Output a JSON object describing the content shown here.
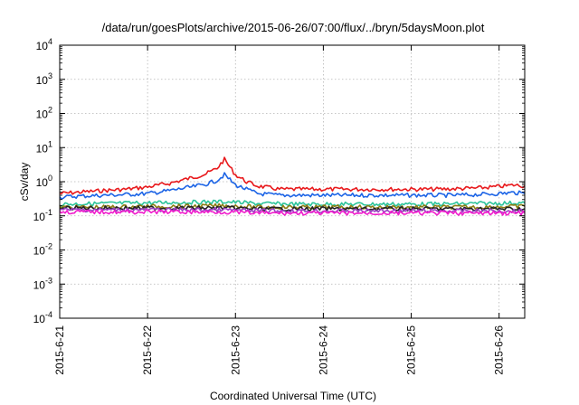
{
  "chart_data": {
    "type": "line",
    "title": "/data/run/goesPlots/archive/2015-06-26/07:00/flux/../bryn/5daysMoon.plot",
    "xlabel": "Coordinated Universal Time (UTC)",
    "ylabel": "cSv/day",
    "yscale": "log",
    "ylim": [
      0.0001,
      10000
    ],
    "y_ticks": [
      {
        "base": "10",
        "exp": "-4"
      },
      {
        "base": "10",
        "exp": "-3"
      },
      {
        "base": "10",
        "exp": "-2"
      },
      {
        "base": "10",
        "exp": "-1"
      },
      {
        "base": "10",
        "exp": "0"
      },
      {
        "base": "10",
        "exp": "1"
      },
      {
        "base": "10",
        "exp": "2"
      },
      {
        "base": "10",
        "exp": "3"
      },
      {
        "base": "10",
        "exp": "4"
      }
    ],
    "x_ticks": [
      "2015-6-21",
      "2015-6-22",
      "2015-6-23",
      "2015-6-24",
      "2015-6-25",
      "2015-6-26"
    ],
    "xlim": [
      "2015-06-21T00:00",
      "2015-06-26T07:00"
    ],
    "grid": true,
    "series": [
      {
        "color": "#e8191c",
        "x": [
          "2015-06-21T00:00",
          "2015-06-21T06:00",
          "2015-06-21T12:00",
          "2015-06-21T18:00",
          "2015-06-22T00:00",
          "2015-06-22T06:00",
          "2015-06-22T12:00",
          "2015-06-22T16:00",
          "2015-06-22T19:00",
          "2015-06-22T21:00",
          "2015-06-23T00:00",
          "2015-06-23T03:00",
          "2015-06-23T06:00",
          "2015-06-23T12:00",
          "2015-06-23T18:00",
          "2015-06-24T00:00",
          "2015-06-24T06:00",
          "2015-06-24T12:00",
          "2015-06-24T18:00",
          "2015-06-25T00:00",
          "2015-06-25T06:00",
          "2015-06-25T12:00",
          "2015-06-25T18:00",
          "2015-06-26T00:00",
          "2015-06-26T04:00",
          "2015-06-26T07:00"
        ],
        "y": [
          0.45,
          0.5,
          0.55,
          0.6,
          0.7,
          0.9,
          1.3,
          1.7,
          2.5,
          4.5,
          1.6,
          1.0,
          0.75,
          0.6,
          0.6,
          0.6,
          0.6,
          0.6,
          0.6,
          0.6,
          0.6,
          0.62,
          0.65,
          0.72,
          0.8,
          0.75
        ]
      },
      {
        "color": "#1c64e6",
        "x": [
          "2015-06-21T00:00",
          "2015-06-21T06:00",
          "2015-06-21T12:00",
          "2015-06-21T18:00",
          "2015-06-22T00:00",
          "2015-06-22T06:00",
          "2015-06-22T12:00",
          "2015-06-22T16:00",
          "2015-06-22T19:00",
          "2015-06-22T21:00",
          "2015-06-23T00:00",
          "2015-06-23T03:00",
          "2015-06-23T06:00",
          "2015-06-23T12:00",
          "2015-06-23T18:00",
          "2015-06-24T00:00",
          "2015-06-24T06:00",
          "2015-06-24T12:00",
          "2015-06-24T18:00",
          "2015-06-25T00:00",
          "2015-06-25T06:00",
          "2015-06-25T12:00",
          "2015-06-25T18:00",
          "2015-06-26T00:00",
          "2015-06-26T04:00",
          "2015-06-26T07:00"
        ],
        "y": [
          0.35,
          0.38,
          0.4,
          0.42,
          0.45,
          0.55,
          0.7,
          0.85,
          1.1,
          1.6,
          0.8,
          0.6,
          0.45,
          0.4,
          0.4,
          0.4,
          0.4,
          0.4,
          0.4,
          0.4,
          0.4,
          0.4,
          0.42,
          0.45,
          0.48,
          0.45
        ]
      },
      {
        "color": "#2cc49a",
        "x": [
          "2015-06-21T00:00",
          "2015-06-21T12:00",
          "2015-06-22T00:00",
          "2015-06-22T12:00",
          "2015-06-22T21:00",
          "2015-06-23T06:00",
          "2015-06-23T18:00",
          "2015-06-24T06:00",
          "2015-06-24T18:00",
          "2015-06-25T06:00",
          "2015-06-25T18:00",
          "2015-06-26T07:00"
        ],
        "y": [
          0.22,
          0.23,
          0.24,
          0.25,
          0.26,
          0.23,
          0.22,
          0.22,
          0.22,
          0.22,
          0.23,
          0.24
        ]
      },
      {
        "color": "#8a7c12",
        "x": [
          "2015-06-21T00:00",
          "2015-06-21T12:00",
          "2015-06-22T00:00",
          "2015-06-22T12:00",
          "2015-06-22T21:00",
          "2015-06-23T06:00",
          "2015-06-23T18:00",
          "2015-06-24T06:00",
          "2015-06-24T18:00",
          "2015-06-25T06:00",
          "2015-06-25T18:00",
          "2015-06-26T07:00"
        ],
        "y": [
          0.18,
          0.18,
          0.19,
          0.19,
          0.2,
          0.18,
          0.18,
          0.18,
          0.18,
          0.18,
          0.18,
          0.19
        ]
      },
      {
        "color": "#222222",
        "x": [
          "2015-06-21T00:00",
          "2015-06-21T12:00",
          "2015-06-22T00:00",
          "2015-06-22T12:00",
          "2015-06-22T21:00",
          "2015-06-23T06:00",
          "2015-06-23T18:00",
          "2015-06-24T06:00",
          "2015-06-24T18:00",
          "2015-06-25T06:00",
          "2015-06-25T18:00",
          "2015-06-26T07:00"
        ],
        "y": [
          0.17,
          0.17,
          0.17,
          0.17,
          0.17,
          0.16,
          0.16,
          0.16,
          0.16,
          0.16,
          0.16,
          0.16
        ]
      },
      {
        "color": "#9b3fc4",
        "x": [
          "2015-06-21T00:00",
          "2015-06-21T12:00",
          "2015-06-22T00:00",
          "2015-06-22T12:00",
          "2015-06-22T21:00",
          "2015-06-23T06:00",
          "2015-06-23T18:00",
          "2015-06-24T06:00",
          "2015-06-24T18:00",
          "2015-06-25T06:00",
          "2015-06-25T18:00",
          "2015-06-26T07:00"
        ],
        "y": [
          0.15,
          0.15,
          0.15,
          0.15,
          0.15,
          0.14,
          0.14,
          0.14,
          0.14,
          0.14,
          0.14,
          0.14
        ]
      },
      {
        "color": "#f01ccc",
        "x": [
          "2015-06-21T00:00",
          "2015-06-21T12:00",
          "2015-06-22T00:00",
          "2015-06-22T12:00",
          "2015-06-22T21:00",
          "2015-06-23T06:00",
          "2015-06-23T18:00",
          "2015-06-24T06:00",
          "2015-06-24T18:00",
          "2015-06-25T06:00",
          "2015-06-25T18:00",
          "2015-06-26T07:00"
        ],
        "y": [
          0.13,
          0.13,
          0.13,
          0.13,
          0.13,
          0.12,
          0.12,
          0.12,
          0.12,
          0.12,
          0.12,
          0.12
        ]
      }
    ]
  }
}
